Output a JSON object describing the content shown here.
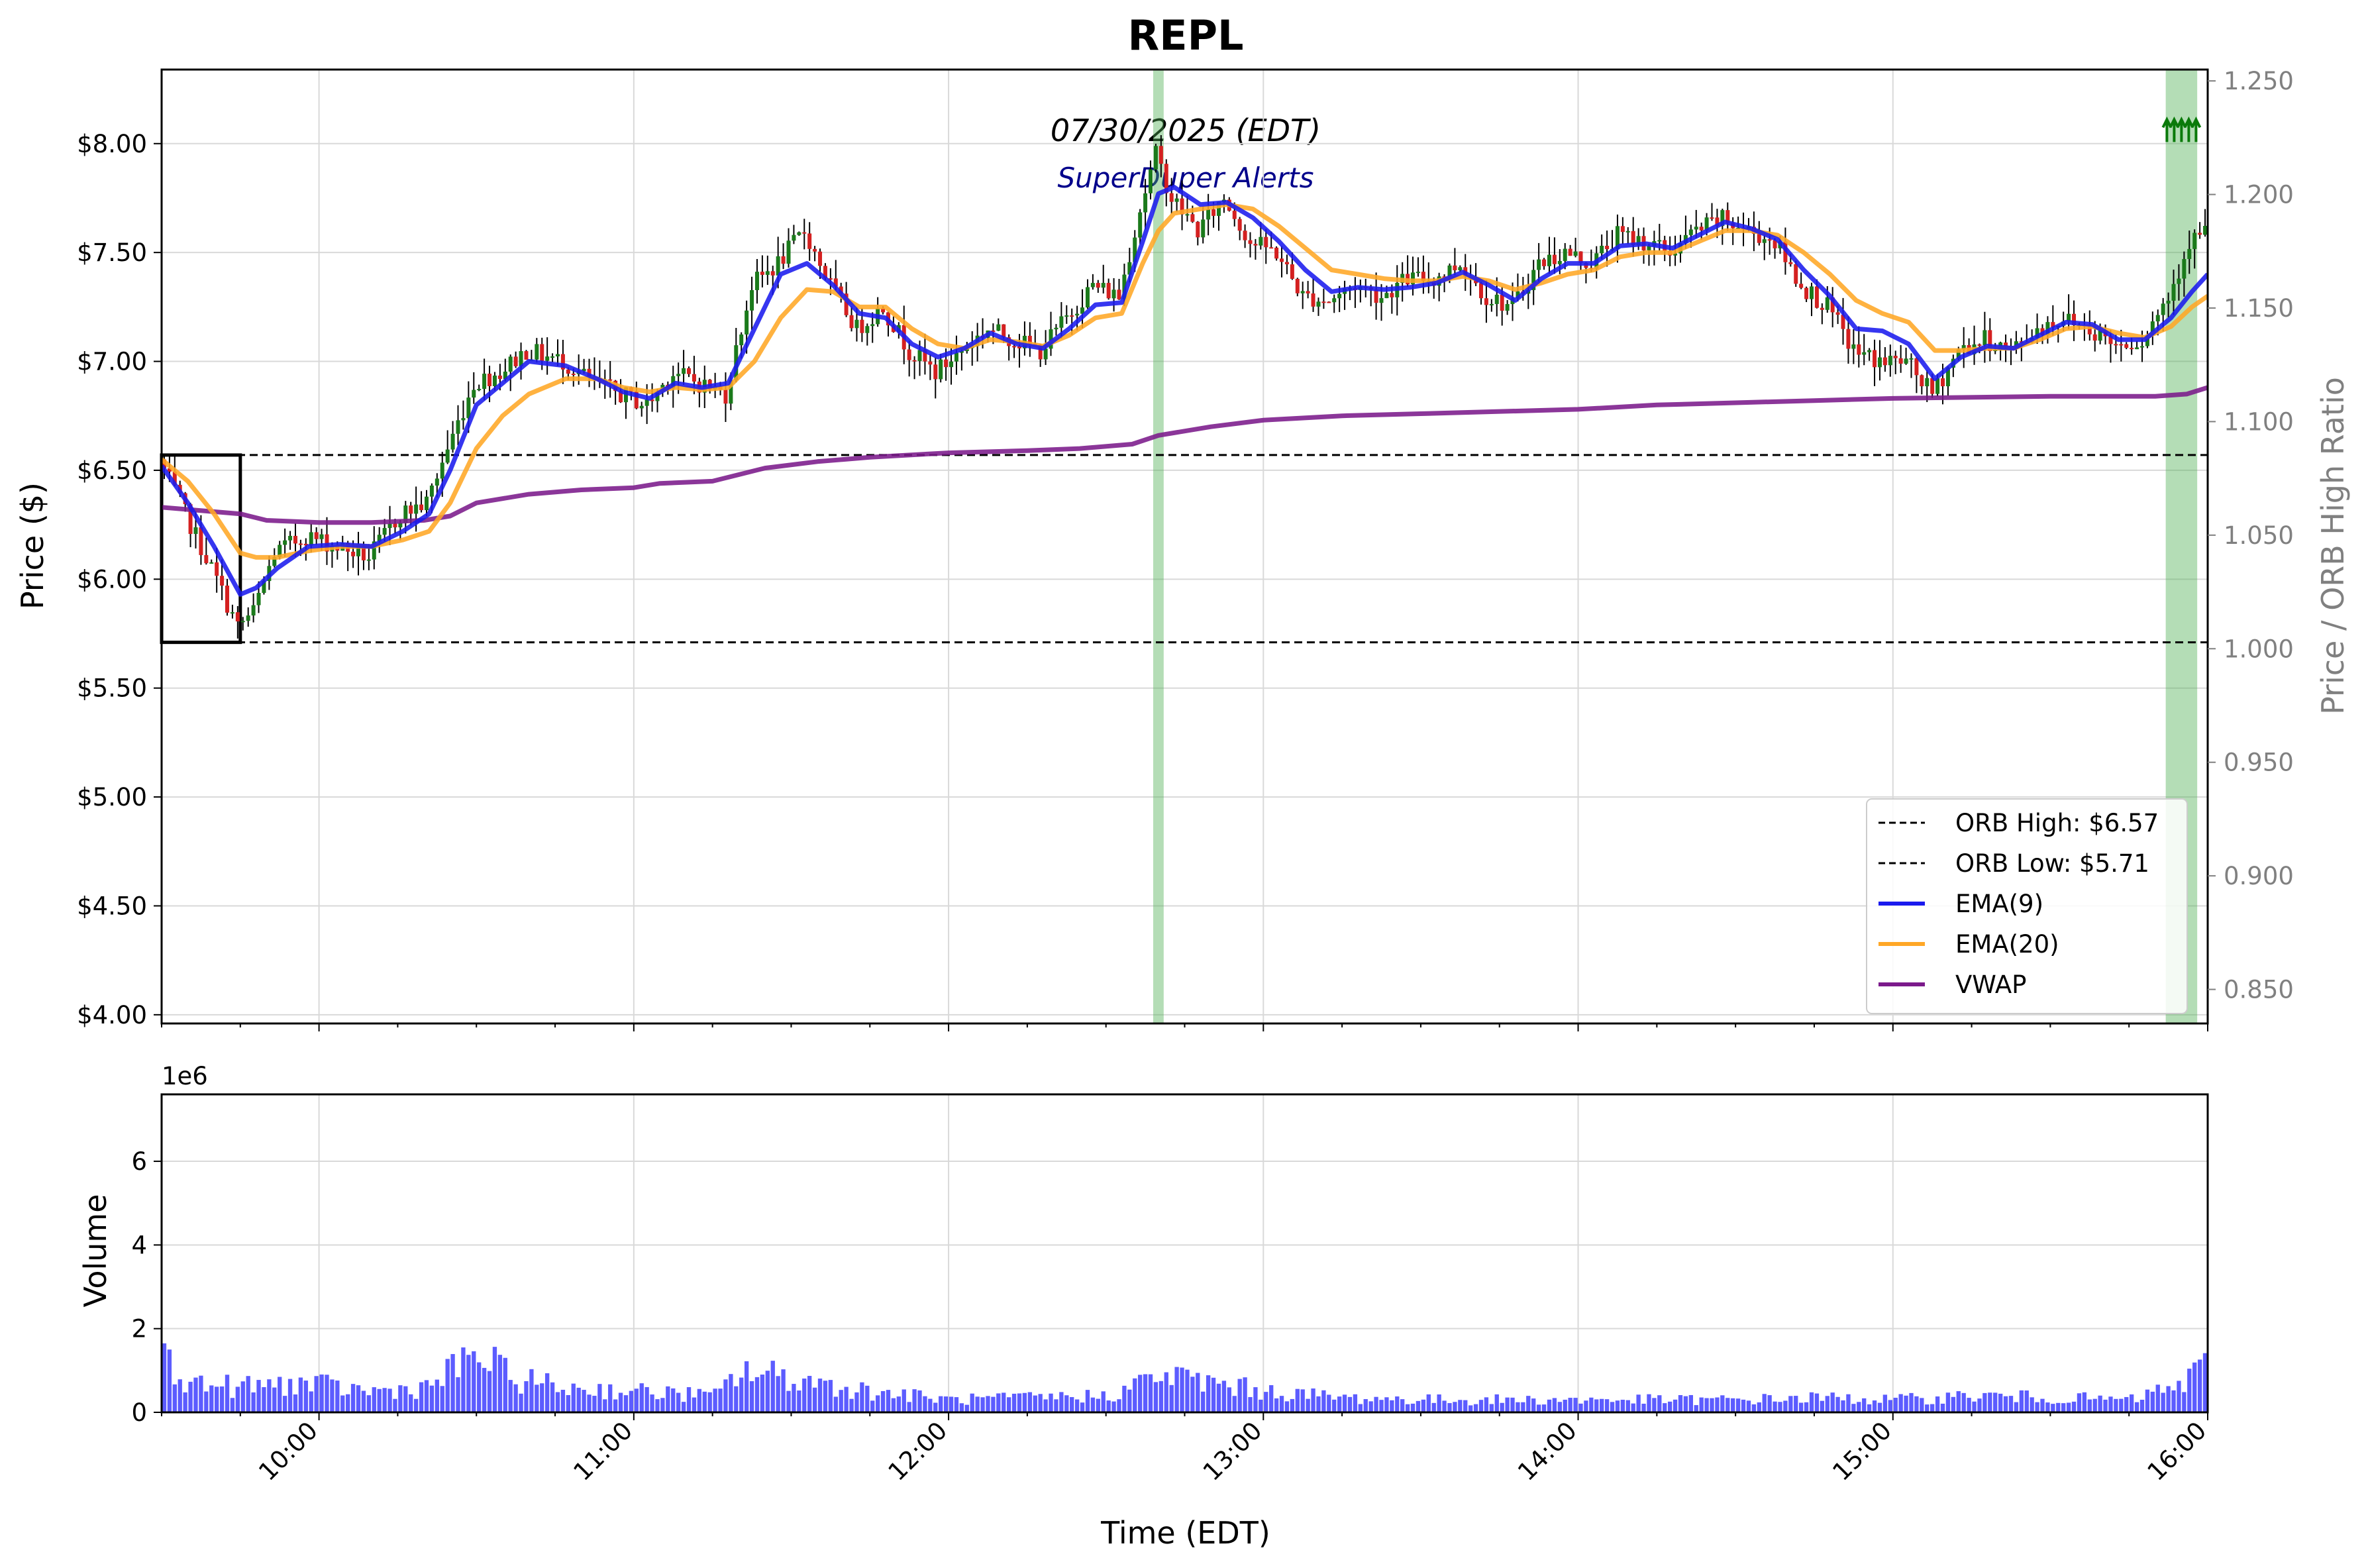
{
  "chart_data": [
    {
      "type": "candlestick",
      "title": "REPL",
      "date_label": "07/30/2025 (EDT)",
      "subtitle": "SuperDuper Alerts",
      "ylabel": "Price ($)",
      "ylabel_right": "Price / ORB High Ratio",
      "ylim": [
        3.96,
        8.34
      ],
      "ylim_right": [
        0.835,
        1.255
      ],
      "y_ticks": [
        "$4.00",
        "$4.50",
        "$5.00",
        "$5.50",
        "$6.00",
        "$6.50",
        "$7.00",
        "$7.50",
        "$8.00"
      ],
      "y_ticks_right": [
        "0.850",
        "0.900",
        "0.950",
        "1.000",
        "1.050",
        "1.100",
        "1.150",
        "1.200",
        "1.250"
      ],
      "x_range": [
        "09:30",
        "16:00"
      ],
      "grid": true,
      "legend_position": "lower right",
      "legend": [
        {
          "label": "ORB High: $6.57",
          "style": "dashed",
          "color": "#000000"
        },
        {
          "label": "ORB Low: $5.71",
          "style": "dashed",
          "color": "#000000"
        },
        {
          "label": "EMA(9)",
          "style": "solid",
          "color": "#1a1aee"
        },
        {
          "label": "EMA(20)",
          "style": "solid",
          "color": "#ffa726"
        },
        {
          "label": "VWAP",
          "style": "solid",
          "color": "#7b1a8b"
        }
      ],
      "orb": {
        "high": 6.57,
        "low": 5.71,
        "start": "09:30",
        "end": "09:45"
      },
      "alert_bands": [
        {
          "start": "12:39",
          "end": "12:41"
        },
        {
          "start": "15:52",
          "end": "15:58"
        }
      ],
      "alert_markers": {
        "time": "15:55",
        "price": 8.05,
        "count": 5
      },
      "price_path": [
        [
          "09:30",
          6.55
        ],
        [
          "09:35",
          6.3
        ],
        [
          "09:40",
          6.05
        ],
        [
          "09:45",
          5.78
        ],
        [
          "09:48",
          5.85
        ],
        [
          "09:52",
          6.12
        ],
        [
          "09:58",
          6.2
        ],
        [
          "10:04",
          6.15
        ],
        [
          "10:10",
          6.1
        ],
        [
          "10:16",
          6.3
        ],
        [
          "10:21",
          6.35
        ],
        [
          "10:25",
          6.6
        ],
        [
          "10:30",
          6.9
        ],
        [
          "10:35",
          6.95
        ],
        [
          "10:40",
          7.05
        ],
        [
          "10:47",
          7.0
        ],
        [
          "10:53",
          6.9
        ],
        [
          "10:58",
          6.85
        ],
        [
          "11:03",
          6.8
        ],
        [
          "11:08",
          6.95
        ],
        [
          "11:13",
          6.9
        ],
        [
          "11:18",
          6.85
        ],
        [
          "11:23",
          7.35
        ],
        [
          "11:28",
          7.45
        ],
        [
          "11:33",
          7.6
        ],
        [
          "11:38",
          7.35
        ],
        [
          "11:43",
          7.15
        ],
        [
          "11:48",
          7.25
        ],
        [
          "11:53",
          7.05
        ],
        [
          "11:58",
          6.95
        ],
        [
          "12:03",
          7.05
        ],
        [
          "12:08",
          7.15
        ],
        [
          "12:13",
          7.1
        ],
        [
          "12:18",
          7.05
        ],
        [
          "12:23",
          7.2
        ],
        [
          "12:28",
          7.35
        ],
        [
          "12:33",
          7.3
        ],
        [
          "12:37",
          7.7
        ],
        [
          "12:40",
          7.95
        ],
        [
          "12:43",
          7.75
        ],
        [
          "12:48",
          7.6
        ],
        [
          "12:53",
          7.75
        ],
        [
          "12:58",
          7.55
        ],
        [
          "13:03",
          7.5
        ],
        [
          "13:08",
          7.3
        ],
        [
          "13:13",
          7.28
        ],
        [
          "13:18",
          7.35
        ],
        [
          "13:23",
          7.3
        ],
        [
          "13:28",
          7.38
        ],
        [
          "13:33",
          7.38
        ],
        [
          "13:38",
          7.45
        ],
        [
          "13:43",
          7.3
        ],
        [
          "13:48",
          7.25
        ],
        [
          "13:53",
          7.45
        ],
        [
          "13:58",
          7.5
        ],
        [
          "14:03",
          7.45
        ],
        [
          "14:08",
          7.58
        ],
        [
          "14:13",
          7.55
        ],
        [
          "14:18",
          7.5
        ],
        [
          "14:23",
          7.6
        ],
        [
          "14:28",
          7.65
        ],
        [
          "14:33",
          7.6
        ],
        [
          "14:38",
          7.55
        ],
        [
          "14:43",
          7.35
        ],
        [
          "14:48",
          7.25
        ],
        [
          "14:53",
          7.05
        ],
        [
          "14:58",
          7.0
        ],
        [
          "15:03",
          7.0
        ],
        [
          "15:08",
          6.85
        ],
        [
          "15:13",
          7.05
        ],
        [
          "15:18",
          7.1
        ],
        [
          "15:23",
          7.05
        ],
        [
          "15:28",
          7.15
        ],
        [
          "15:33",
          7.2
        ],
        [
          "15:38",
          7.15
        ],
        [
          "15:43",
          7.08
        ],
        [
          "15:48",
          7.1
        ],
        [
          "15:53",
          7.3
        ],
        [
          "15:57",
          7.55
        ],
        [
          "16:00",
          7.6
        ]
      ],
      "ema9": [
        [
          "09:30",
          6.52
        ],
        [
          "09:35",
          6.35
        ],
        [
          "09:40",
          6.15
        ],
        [
          "09:45",
          5.93
        ],
        [
          "09:48",
          5.96
        ],
        [
          "09:52",
          6.05
        ],
        [
          "09:58",
          6.15
        ],
        [
          "10:04",
          6.16
        ],
        [
          "10:10",
          6.15
        ],
        [
          "10:16",
          6.22
        ],
        [
          "10:21",
          6.3
        ],
        [
          "10:25",
          6.5
        ],
        [
          "10:30",
          6.8
        ],
        [
          "10:35",
          6.9
        ],
        [
          "10:40",
          7.0
        ],
        [
          "10:47",
          6.98
        ],
        [
          "10:53",
          6.92
        ],
        [
          "10:58",
          6.86
        ],
        [
          "11:03",
          6.83
        ],
        [
          "11:08",
          6.9
        ],
        [
          "11:13",
          6.88
        ],
        [
          "11:18",
          6.9
        ],
        [
          "11:23",
          7.15
        ],
        [
          "11:28",
          7.4
        ],
        [
          "11:33",
          7.45
        ],
        [
          "11:38",
          7.35
        ],
        [
          "11:43",
          7.22
        ],
        [
          "11:48",
          7.2
        ],
        [
          "11:53",
          7.08
        ],
        [
          "11:58",
          7.02
        ],
        [
          "12:03",
          7.06
        ],
        [
          "12:08",
          7.13
        ],
        [
          "12:13",
          7.08
        ],
        [
          "12:18",
          7.06
        ],
        [
          "12:23",
          7.15
        ],
        [
          "12:28",
          7.26
        ],
        [
          "12:33",
          7.27
        ],
        [
          "12:37",
          7.55
        ],
        [
          "12:40",
          7.77
        ],
        [
          "12:43",
          7.8
        ],
        [
          "12:48",
          7.72
        ],
        [
          "12:53",
          7.73
        ],
        [
          "12:58",
          7.66
        ],
        [
          "13:03",
          7.55
        ],
        [
          "13:08",
          7.42
        ],
        [
          "13:13",
          7.32
        ],
        [
          "13:18",
          7.34
        ],
        [
          "13:23",
          7.33
        ],
        [
          "13:28",
          7.34
        ],
        [
          "13:33",
          7.36
        ],
        [
          "13:38",
          7.41
        ],
        [
          "13:43",
          7.35
        ],
        [
          "13:48",
          7.28
        ],
        [
          "13:53",
          7.38
        ],
        [
          "13:58",
          7.45
        ],
        [
          "14:03",
          7.45
        ],
        [
          "14:08",
          7.53
        ],
        [
          "14:13",
          7.54
        ],
        [
          "14:18",
          7.52
        ],
        [
          "14:23",
          7.58
        ],
        [
          "14:28",
          7.64
        ],
        [
          "14:33",
          7.61
        ],
        [
          "14:38",
          7.56
        ],
        [
          "14:43",
          7.42
        ],
        [
          "14:48",
          7.3
        ],
        [
          "14:53",
          7.15
        ],
        [
          "14:58",
          7.14
        ],
        [
          "15:03",
          7.08
        ],
        [
          "15:08",
          6.92
        ],
        [
          "15:13",
          7.02
        ],
        [
          "15:18",
          7.07
        ],
        [
          "15:23",
          7.06
        ],
        [
          "15:28",
          7.12
        ],
        [
          "15:33",
          7.18
        ],
        [
          "15:38",
          7.17
        ],
        [
          "15:43",
          7.1
        ],
        [
          "15:48",
          7.1
        ],
        [
          "15:53",
          7.2
        ],
        [
          "15:57",
          7.32
        ],
        [
          "16:00",
          7.4
        ]
      ],
      "ema20": [
        [
          "09:30",
          6.55
        ],
        [
          "09:35",
          6.45
        ],
        [
          "09:40",
          6.3
        ],
        [
          "09:45",
          6.12
        ],
        [
          "09:48",
          6.1
        ],
        [
          "09:52",
          6.1
        ],
        [
          "09:58",
          6.13
        ],
        [
          "10:04",
          6.15
        ],
        [
          "10:10",
          6.15
        ],
        [
          "10:16",
          6.18
        ],
        [
          "10:21",
          6.22
        ],
        [
          "10:25",
          6.35
        ],
        [
          "10:30",
          6.6
        ],
        [
          "10:35",
          6.75
        ],
        [
          "10:40",
          6.85
        ],
        [
          "10:47",
          6.92
        ],
        [
          "10:53",
          6.92
        ],
        [
          "10:58",
          6.88
        ],
        [
          "11:03",
          6.86
        ],
        [
          "11:08",
          6.88
        ],
        [
          "11:13",
          6.87
        ],
        [
          "11:18",
          6.88
        ],
        [
          "11:23",
          7.0
        ],
        [
          "11:28",
          7.2
        ],
        [
          "11:33",
          7.33
        ],
        [
          "11:38",
          7.32
        ],
        [
          "11:43",
          7.25
        ],
        [
          "11:48",
          7.25
        ],
        [
          "11:53",
          7.15
        ],
        [
          "11:58",
          7.08
        ],
        [
          "12:03",
          7.06
        ],
        [
          "12:08",
          7.1
        ],
        [
          "12:13",
          7.09
        ],
        [
          "12:18",
          7.07
        ],
        [
          "12:23",
          7.12
        ],
        [
          "12:28",
          7.2
        ],
        [
          "12:33",
          7.22
        ],
        [
          "12:37",
          7.45
        ],
        [
          "12:40",
          7.6
        ],
        [
          "12:43",
          7.68
        ],
        [
          "12:48",
          7.7
        ],
        [
          "12:53",
          7.72
        ],
        [
          "12:58",
          7.7
        ],
        [
          "13:03",
          7.62
        ],
        [
          "13:08",
          7.52
        ],
        [
          "13:13",
          7.42
        ],
        [
          "13:18",
          7.4
        ],
        [
          "13:23",
          7.38
        ],
        [
          "13:28",
          7.37
        ],
        [
          "13:33",
          7.37
        ],
        [
          "13:38",
          7.39
        ],
        [
          "13:43",
          7.37
        ],
        [
          "13:48",
          7.33
        ],
        [
          "13:53",
          7.36
        ],
        [
          "13:58",
          7.4
        ],
        [
          "14:03",
          7.42
        ],
        [
          "14:08",
          7.48
        ],
        [
          "14:13",
          7.5
        ],
        [
          "14:18",
          7.5
        ],
        [
          "14:23",
          7.55
        ],
        [
          "14:28",
          7.6
        ],
        [
          "14:33",
          7.6
        ],
        [
          "14:38",
          7.58
        ],
        [
          "14:43",
          7.5
        ],
        [
          "14:48",
          7.4
        ],
        [
          "14:53",
          7.28
        ],
        [
          "14:58",
          7.22
        ],
        [
          "15:03",
          7.18
        ],
        [
          "15:08",
          7.05
        ],
        [
          "15:13",
          7.05
        ],
        [
          "15:18",
          7.06
        ],
        [
          "15:23",
          7.06
        ],
        [
          "15:28",
          7.1
        ],
        [
          "15:33",
          7.15
        ],
        [
          "15:38",
          7.16
        ],
        [
          "15:43",
          7.13
        ],
        [
          "15:48",
          7.11
        ],
        [
          "15:53",
          7.16
        ],
        [
          "15:57",
          7.25
        ],
        [
          "16:00",
          7.3
        ]
      ],
      "vwap": [
        [
          "09:30",
          6.33
        ],
        [
          "09:45",
          6.3
        ],
        [
          "09:50",
          6.27
        ],
        [
          "10:00",
          6.26
        ],
        [
          "10:10",
          6.26
        ],
        [
          "10:20",
          6.27
        ],
        [
          "10:25",
          6.29
        ],
        [
          "10:30",
          6.35
        ],
        [
          "10:40",
          6.39
        ],
        [
          "10:50",
          6.41
        ],
        [
          "11:00",
          6.42
        ],
        [
          "11:05",
          6.44
        ],
        [
          "11:15",
          6.45
        ],
        [
          "11:20",
          6.48
        ],
        [
          "11:25",
          6.51
        ],
        [
          "11:35",
          6.54
        ],
        [
          "11:45",
          6.56
        ],
        [
          "12:00",
          6.58
        ],
        [
          "12:15",
          6.59
        ],
        [
          "12:25",
          6.6
        ],
        [
          "12:35",
          6.62
        ],
        [
          "12:40",
          6.66
        ],
        [
          "12:50",
          6.7
        ],
        [
          "13:00",
          6.73
        ],
        [
          "13:15",
          6.75
        ],
        [
          "13:30",
          6.76
        ],
        [
          "14:00",
          6.78
        ],
        [
          "14:15",
          6.8
        ],
        [
          "14:30",
          6.81
        ],
        [
          "14:45",
          6.82
        ],
        [
          "15:00",
          6.83
        ],
        [
          "15:30",
          6.84
        ],
        [
          "15:50",
          6.84
        ],
        [
          "15:56",
          6.85
        ],
        [
          "16:00",
          6.88
        ]
      ]
    },
    {
      "type": "bar",
      "ylabel": "Volume",
      "xlabel": "Time (EDT)",
      "offset_label": "1e6",
      "ylim": [
        0,
        7.6
      ],
      "y_ticks": [
        "0",
        "2",
        "4",
        "6"
      ],
      "x_ticks": [
        "10:00",
        "11:00",
        "12:00",
        "13:00",
        "14:00",
        "15:00",
        "16:00"
      ],
      "color": "#4a4aff",
      "volume_profile_millions": [
        [
          "09:30",
          1.3
        ],
        [
          "09:35",
          0.7
        ],
        [
          "09:45",
          0.6
        ],
        [
          "09:55",
          0.7
        ],
        [
          "10:10",
          0.5
        ],
        [
          "10:20",
          0.6
        ],
        [
          "10:25",
          1.0
        ],
        [
          "10:30",
          1.4
        ],
        [
          "10:35",
          0.9
        ],
        [
          "10:45",
          0.6
        ],
        [
          "11:00",
          0.5
        ],
        [
          "11:15",
          0.4
        ],
        [
          "11:20",
          1.0
        ],
        [
          "11:30",
          0.8
        ],
        [
          "11:45",
          0.5
        ],
        [
          "12:00",
          0.3
        ],
        [
          "12:15",
          0.35
        ],
        [
          "12:30",
          0.4
        ],
        [
          "12:40",
          0.9
        ],
        [
          "12:45",
          0.8
        ],
        [
          "13:00",
          0.5
        ],
        [
          "13:15",
          0.35
        ],
        [
          "13:30",
          0.3
        ],
        [
          "14:00",
          0.3
        ],
        [
          "14:30",
          0.3
        ],
        [
          "14:45",
          0.35
        ],
        [
          "15:00",
          0.3
        ],
        [
          "15:15",
          0.4
        ],
        [
          "15:30",
          0.35
        ],
        [
          "15:45",
          0.3
        ],
        [
          "15:55",
          0.7
        ],
        [
          "16:00",
          1.2
        ]
      ]
    }
  ]
}
